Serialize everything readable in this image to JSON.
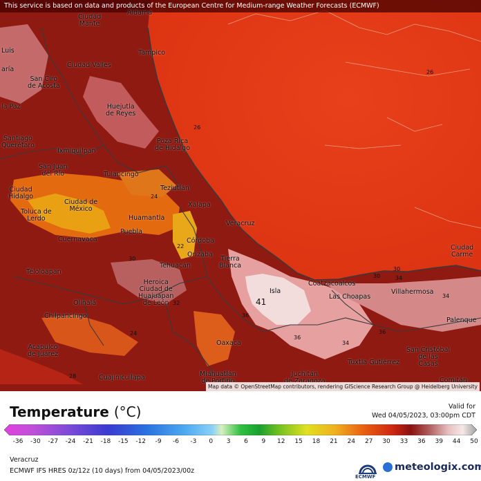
{
  "disclaimer": "This service is based on data and products of the European Centre for Medium-range Weather Forecasts (ECMWF)",
  "attribution": "Map data © OpenStreetMap contributors, rendering GIScience Research Group @ Heidelberg University",
  "legend": {
    "title": "Temperature",
    "unit": "(°C)",
    "valid_label": "Valid for",
    "valid_time": "Wed 04/05/2023, 03:00pm CDT",
    "ticks": [
      "-36",
      "-30",
      "-27",
      "-24",
      "-21",
      "-18",
      "-15",
      "-12",
      "-9",
      "-6",
      "-3",
      "0",
      "3",
      "6",
      "9",
      "12",
      "15",
      "18",
      "21",
      "24",
      "27",
      "30",
      "33",
      "36",
      "39",
      "44",
      "50"
    ]
  },
  "region": "Veracruz",
  "model_line": "ECMWF IFS HRES 0z/12z (10 days) from 04/05/2023/00z",
  "logos": {
    "ecmwf": "ECMWF",
    "meteologix": "meteologix.com"
  },
  "cities": [
    {
      "name": "Aldama"
    },
    {
      "name": "Ciudad\nMante"
    },
    {
      "name": "Luis"
    },
    {
      "name": "aría"
    },
    {
      "name": "Tampico"
    },
    {
      "name": "Ciudad Valles"
    },
    {
      "name": "San Ciro\nde Acosta"
    },
    {
      "name": "la Paz"
    },
    {
      "name": "Huejutla\nde Reyes"
    },
    {
      "name": "Santiago\nQuerétaro"
    },
    {
      "name": "Poza Rica\nde Hidalgo"
    },
    {
      "name": "Ixmiquilpan"
    },
    {
      "name": "San Juan\ndel Río"
    },
    {
      "name": "Tulancingo"
    },
    {
      "name": "Teziutlán"
    },
    {
      "name": "Ciudad\nHidalgo"
    },
    {
      "name": "Xalapa"
    },
    {
      "name": "Toluca de\nLerdo"
    },
    {
      "name": "Ciudad de\nMéxico"
    },
    {
      "name": "Huamantla"
    },
    {
      "name": "Veracruz"
    },
    {
      "name": "Puebla"
    },
    {
      "name": "Córdoba"
    },
    {
      "name": "Cuernavaca"
    },
    {
      "name": "Orizaba"
    },
    {
      "name": "Tehuacán"
    },
    {
      "name": "Tierra\nBlanca"
    },
    {
      "name": "Ciudad\nCarme"
    },
    {
      "name": "Teloloapan"
    },
    {
      "name": "Heroica\nCiudad de\nHuajuapan\nde León"
    },
    {
      "name": "Isla"
    },
    {
      "name": "Coatzacoalcos"
    },
    {
      "name": "Las Choapas"
    },
    {
      "name": "Villahermosa"
    },
    {
      "name": "Olinalá"
    },
    {
      "name": "Chilpancingo"
    },
    {
      "name": "Palenque"
    },
    {
      "name": "Oaxaca"
    },
    {
      "name": "Acapulco\nde Juárez"
    },
    {
      "name": "Tuxtla Gutiérrez"
    },
    {
      "name": "San Cristóbal\nde las\nCasas"
    },
    {
      "name": "Miahuatlán\nde Porfirio"
    },
    {
      "name": "Juchitán\nde Zaragoza"
    },
    {
      "name": "Cuajinicuilapa"
    },
    {
      "name": "Comitán"
    }
  ],
  "contour_labels": [
    "26",
    "26",
    "24",
    "30",
    "30",
    "36",
    "36",
    "34",
    "34",
    "36",
    "41",
    "22",
    "24",
    "28",
    "30",
    "32",
    "34"
  ]
}
